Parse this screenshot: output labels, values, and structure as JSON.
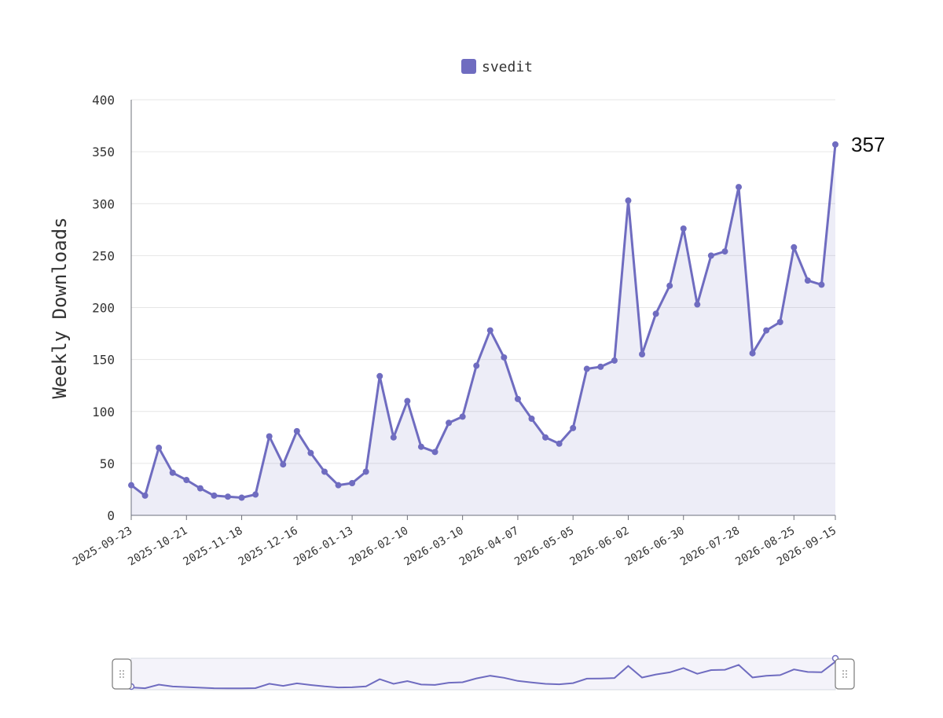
{
  "chart_data": {
    "type": "line",
    "legend": {
      "labels": [
        "svedit"
      ],
      "placement": "top-center"
    },
    "ylabel": "Weekly Downloads",
    "xlabel": "",
    "title": "",
    "ylim": [
      0,
      400
    ],
    "yticks": [
      0,
      50,
      100,
      150,
      200,
      250,
      300,
      350,
      400
    ],
    "xtick_labels": [
      "2025-09-23",
      "2025-10-21",
      "2025-11-18",
      "2025-12-16",
      "2026-01-13",
      "2026-02-10",
      "2026-03-10",
      "2026-04-07",
      "2026-05-05",
      "2026-06-02",
      "2026-06-30",
      "2026-07-28",
      "2026-08-25",
      "2026-09-15"
    ],
    "end_value_label": "357",
    "grid": true,
    "data_zoom": true,
    "series": [
      {
        "name": "svedit",
        "color": "#6f6cc0",
        "x": [
          "2025-09-23",
          "2025-09-30",
          "2025-10-07",
          "2025-10-14",
          "2025-10-21",
          "2025-10-28",
          "2025-11-04",
          "2025-11-11",
          "2025-11-18",
          "2025-11-25",
          "2025-12-02",
          "2025-12-09",
          "2025-12-16",
          "2025-12-23",
          "2025-12-30",
          "2026-01-06",
          "2026-01-13",
          "2026-01-20",
          "2026-01-27",
          "2026-02-03",
          "2026-02-10",
          "2026-02-17",
          "2026-02-24",
          "2026-03-03",
          "2026-03-10",
          "2026-03-17",
          "2026-03-24",
          "2026-03-31",
          "2026-04-07",
          "2026-04-14",
          "2026-04-21",
          "2026-04-28",
          "2026-05-05",
          "2026-05-12",
          "2026-05-19",
          "2026-05-26",
          "2026-06-02",
          "2026-06-09",
          "2026-06-16",
          "2026-06-23",
          "2026-06-30",
          "2026-07-07",
          "2026-07-14",
          "2026-07-21",
          "2026-07-28",
          "2026-08-04",
          "2026-08-11",
          "2026-08-18",
          "2026-08-25",
          "2026-09-01",
          "2026-09-08",
          "2026-09-15"
        ],
        "values": [
          29,
          19,
          65,
          41,
          34,
          26,
          19,
          18,
          17,
          20,
          76,
          49,
          81,
          60,
          42,
          29,
          31,
          42,
          134,
          75,
          110,
          66,
          61,
          89,
          95,
          144,
          178,
          152,
          112,
          93,
          75,
          69,
          84,
          141,
          143,
          149,
          303,
          155,
          194,
          221,
          276,
          203,
          250,
          254,
          316,
          156,
          178,
          186,
          258,
          226,
          222,
          357
        ]
      }
    ]
  }
}
